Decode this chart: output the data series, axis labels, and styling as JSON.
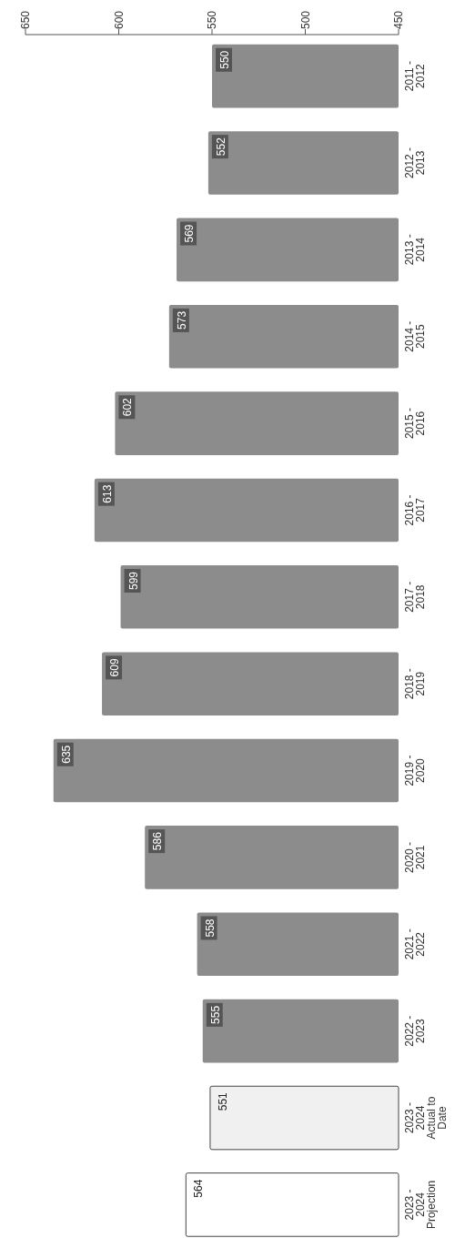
{
  "chart_data": {
    "type": "bar",
    "orientation": "horizontal",
    "categories": [
      "2011 -\n2012",
      "2012 -\n2013",
      "2013 -\n2014",
      "2014 -\n2015",
      "2015 -\n2016",
      "2016 -\n2017",
      "2017 -\n2018",
      "2018 -\n2019",
      "2019 -\n2020",
      "2020 -\n2021",
      "2021 -\n2022",
      "2022 -\n2023",
      "2023 -\n2024\nActual to\nDate",
      "2023 -\n2024\nProjection"
    ],
    "values": [
      550,
      552,
      569,
      573,
      602,
      613,
      599,
      609,
      635,
      586,
      558,
      555,
      551,
      564
    ],
    "colors": [
      "#8c8c8c",
      "#8c8c8c",
      "#8c8c8c",
      "#8c8c8c",
      "#8c8c8c",
      "#8c8c8c",
      "#8c8c8c",
      "#8c8c8c",
      "#8c8c8c",
      "#8c8c8c",
      "#8c8c8c",
      "#8c8c8c",
      "#f0f0f0",
      "#ffffff"
    ],
    "xlim": [
      650,
      450
    ],
    "xticks": [
      650,
      600,
      550,
      500,
      450
    ],
    "data_labels": true
  }
}
